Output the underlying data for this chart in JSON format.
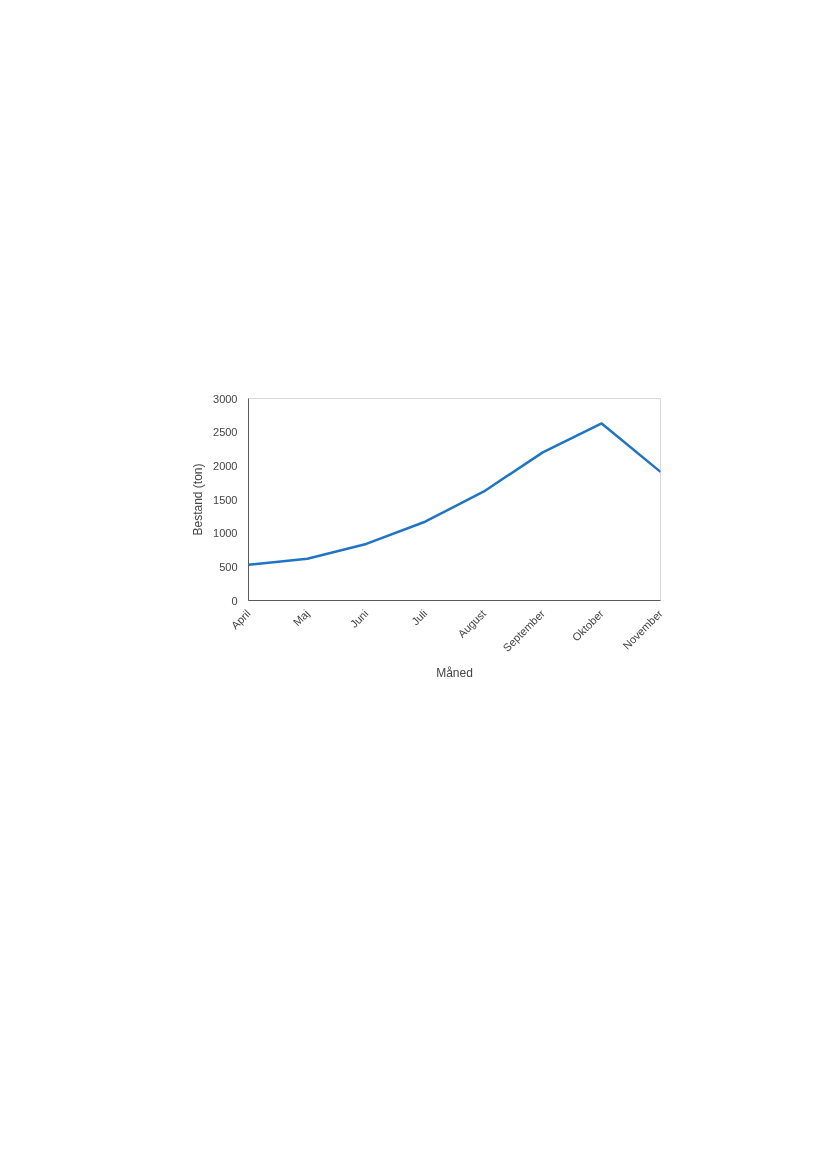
{
  "chart_data": {
    "type": "line",
    "xlabel": "Måned",
    "ylabel": "Bestand (ton)",
    "categories": [
      "April",
      "Maj",
      "Juni",
      "Juli",
      "August",
      "September",
      "Oktober",
      "November"
    ],
    "series": [
      {
        "color": "#1f74c4",
        "values": [
          530,
          620,
          840,
          1170,
          1620,
          2200,
          2630,
          1910
        ]
      }
    ],
    "ylim": [
      0,
      3000
    ],
    "yticks": [
      0,
      500,
      1000,
      1500,
      2000,
      2500,
      3000
    ],
    "grid": false,
    "marker": "none",
    "line_style": "solid"
  }
}
